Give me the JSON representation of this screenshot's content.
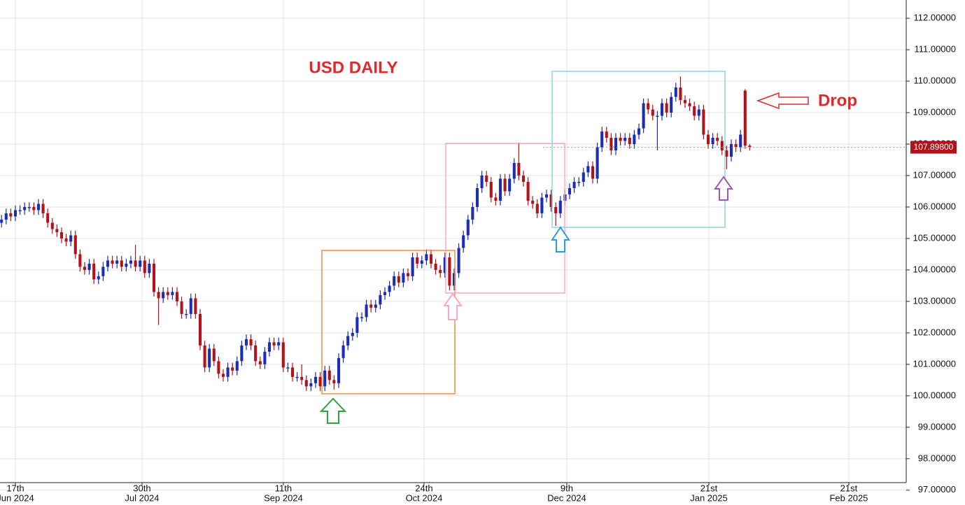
{
  "chart_data": {
    "type": "candlestick",
    "title": "USD DAILY",
    "annotation": "Drop",
    "up_color": "#1c2db5",
    "down_color": "#b2131b",
    "grid": true,
    "xlim": [
      -3.33,
      192.88
    ],
    "ylim": [
      97.24,
      112.58
    ],
    "xticks": [
      {
        "value": 0,
        "label": "17th",
        "sublabel": "Jun 2024"
      },
      {
        "value": 27.42,
        "label": "30th",
        "sublabel": "Jul 2024"
      },
      {
        "value": 58.03,
        "label": "11th",
        "sublabel": "Sep 2024"
      },
      {
        "value": 88.48,
        "label": "24th",
        "sublabel": "Oct 2024"
      },
      {
        "value": 119.39,
        "label": "9th",
        "sublabel": "Dec 2024"
      },
      {
        "value": 150.15,
        "label": "21st",
        "sublabel": "Jan 2025"
      },
      {
        "value": 180.45,
        "label": "21st",
        "sublabel": "Feb 2025"
      }
    ],
    "yticks": [
      {
        "value": 97,
        "label": "97.00000"
      },
      {
        "value": 98,
        "label": "98.00000"
      },
      {
        "value": 99,
        "label": "99.00000"
      },
      {
        "value": 100,
        "label": "100.00000"
      },
      {
        "value": 101,
        "label": "101.00000"
      },
      {
        "value": 102,
        "label": "102.00000"
      },
      {
        "value": 103,
        "label": "103.00000"
      },
      {
        "value": 104,
        "label": "104.00000"
      },
      {
        "value": 105,
        "label": "105.00000"
      },
      {
        "value": 106,
        "label": "106.00000"
      },
      {
        "value": 107,
        "label": "107.00000"
      },
      {
        "value": 108,
        "label": "108.00000"
      },
      {
        "value": 109,
        "label": "109.00000"
      },
      {
        "value": 110,
        "label": "110.00000"
      },
      {
        "value": 111,
        "label": "111.00000"
      },
      {
        "value": 112,
        "label": "112.00000"
      }
    ],
    "last_price": {
      "value": 107.898,
      "label": "107.89800"
    },
    "x": [
      -3,
      -2,
      -1,
      0,
      1,
      2,
      3,
      4,
      5,
      6,
      7,
      8,
      9,
      10,
      11,
      12,
      13,
      14,
      15,
      16,
      17,
      18,
      19,
      20,
      21,
      22,
      23,
      24,
      25,
      26,
      27,
      28,
      29,
      30,
      31,
      32,
      33,
      34,
      35,
      36,
      37,
      38,
      39,
      40,
      41,
      42,
      43,
      44,
      45,
      46,
      47,
      48,
      49,
      50,
      51,
      52,
      53,
      54,
      55,
      56,
      57,
      58,
      59,
      60,
      61,
      62,
      63,
      64,
      65,
      66,
      67,
      68,
      69,
      70,
      71,
      72,
      73,
      74,
      75,
      76,
      77,
      78,
      79,
      80,
      81,
      82,
      83,
      84,
      85,
      86,
      87,
      88,
      89,
      90,
      91,
      92,
      93,
      94,
      95,
      96,
      97,
      98,
      99,
      100,
      101,
      102,
      103,
      104,
      105,
      106,
      107,
      108,
      109,
      110,
      111,
      112,
      113,
      114,
      115,
      116,
      117,
      118,
      119,
      120,
      121,
      122,
      123,
      124,
      125,
      126,
      127,
      128,
      129,
      130,
      131,
      132,
      133,
      134,
      135,
      136,
      137,
      138,
      139,
      140,
      141,
      142,
      143,
      144,
      145,
      146,
      147,
      148,
      149,
      150,
      151,
      152,
      153,
      154,
      155,
      156,
      157,
      158,
      159
    ],
    "open": [
      105.5,
      105.6,
      105.8,
      105.7,
      105.9,
      105.9,
      106.0,
      106.0,
      105.9,
      106.1,
      105.8,
      105.5,
      105.3,
      105.2,
      105.0,
      104.9,
      105.1,
      104.5,
      104.1,
      104.0,
      104.2,
      103.7,
      103.8,
      104.1,
      104.3,
      104.2,
      104.3,
      104.1,
      104.2,
      104.3,
      104.1,
      104.3,
      103.9,
      104.2,
      103.3,
      103.1,
      103.3,
      103.2,
      103.3,
      103.0,
      102.6,
      102.6,
      103.1,
      102.6,
      101.6,
      100.9,
      101.5,
      101.1,
      100.7,
      100.6,
      100.9,
      100.8,
      101.1,
      101.6,
      101.8,
      101.6,
      101.1,
      101.0,
      101.4,
      101.7,
      101.6,
      101.7,
      100.9,
      100.9,
      100.6,
      100.6,
      100.5,
      100.3,
      100.4,
      100.6,
      100.3,
      100.8,
      100.5,
      100.4,
      101.2,
      101.6,
      101.9,
      102.0,
      102.5,
      102.5,
      102.9,
      102.8,
      102.9,
      103.2,
      103.3,
      103.5,
      103.8,
      103.6,
      103.9,
      103.8,
      104.4,
      104.2,
      104.3,
      104.5,
      104.2,
      104.0,
      103.9,
      104.4,
      103.5,
      103.9,
      104.7,
      105.1,
      105.6,
      106.0,
      106.6,
      107.0,
      106.8,
      106.3,
      106.2,
      106.9,
      106.5,
      106.9,
      107.4,
      107.0,
      106.8,
      106.2,
      106.1,
      105.8,
      106.3,
      106.4,
      106.0,
      105.8,
      106.2,
      106.4,
      106.6,
      106.8,
      106.8,
      107.1,
      107.3,
      106.9,
      107.9,
      108.4,
      108.2,
      107.8,
      108.2,
      108.1,
      108.2,
      108.0,
      108.3,
      108.5,
      109.3,
      109.1,
      108.9,
      108.9,
      109.3,
      109.0,
      109.5,
      109.8,
      109.4,
      109.3,
      109.2,
      108.9,
      109.1,
      108.3,
      108.0,
      108.2,
      108.1,
      107.8,
      107.6,
      108.0,
      107.9,
      109.7,
      107.95
    ],
    "high": [
      105.75,
      105.95,
      105.95,
      106.05,
      106.05,
      106.15,
      106.15,
      106.15,
      106.25,
      106.25,
      105.95,
      105.65,
      105.45,
      105.35,
      105.15,
      105.25,
      105.25,
      104.65,
      104.25,
      104.35,
      104.35,
      103.95,
      104.25,
      104.45,
      104.45,
      104.45,
      104.45,
      104.35,
      104.45,
      104.8,
      104.45,
      104.45,
      104.35,
      104.35,
      103.45,
      103.45,
      103.45,
      103.45,
      103.45,
      103.15,
      102.75,
      103.25,
      103.25,
      102.75,
      101.75,
      101.65,
      101.65,
      101.25,
      100.85,
      101.05,
      101.05,
      101.25,
      101.75,
      101.95,
      101.95,
      101.75,
      101.25,
      101.55,
      101.85,
      101.85,
      101.85,
      101.85,
      101.05,
      101.05,
      100.75,
      101.0,
      100.65,
      100.55,
      100.75,
      100.75,
      100.95,
      100.95,
      100.65,
      101.35,
      101.75,
      102.05,
      102.15,
      102.65,
      102.65,
      103.05,
      103.05,
      103.05,
      103.35,
      103.45,
      103.65,
      103.95,
      103.95,
      104.05,
      104.05,
      104.55,
      104.55,
      104.45,
      104.65,
      104.65,
      104.35,
      104.15,
      104.55,
      104.55,
      104.05,
      104.85,
      105.25,
      105.75,
      106.15,
      106.75,
      107.15,
      107.15,
      106.95,
      106.45,
      107.05,
      107.05,
      107.05,
      107.55,
      108.05,
      107.15,
      106.95,
      106.35,
      106.25,
      106.45,
      106.55,
      106.55,
      106.15,
      106.35,
      106.55,
      106.75,
      106.95,
      106.95,
      107.25,
      107.45,
      107.45,
      108.05,
      108.55,
      108.55,
      108.35,
      108.35,
      108.35,
      108.35,
      108.35,
      108.45,
      108.65,
      109.45,
      109.45,
      109.25,
      109.05,
      109.45,
      109.45,
      109.65,
      109.95,
      110.15,
      109.55,
      109.45,
      109.35,
      109.25,
      109.25,
      108.45,
      108.35,
      108.35,
      108.25,
      107.95,
      108.15,
      108.15,
      108.45,
      109.75,
      108.0
    ],
    "low": [
      105.35,
      105.45,
      105.55,
      105.55,
      105.75,
      105.75,
      105.85,
      105.75,
      105.75,
      105.65,
      105.35,
      105.15,
      105.05,
      104.85,
      104.75,
      104.75,
      104.35,
      103.95,
      103.85,
      103.85,
      103.55,
      103.55,
      103.65,
      103.95,
      104.05,
      104.05,
      103.95,
      103.95,
      104.05,
      103.95,
      103.95,
      103.75,
      103.75,
      103.15,
      102.25,
      102.95,
      103.05,
      103.05,
      102.85,
      102.45,
      102.45,
      102.45,
      102.45,
      101.45,
      100.75,
      100.75,
      100.95,
      100.55,
      100.45,
      100.45,
      100.65,
      100.65,
      100.95,
      101.45,
      101.45,
      100.95,
      100.85,
      100.85,
      101.25,
      101.45,
      101.45,
      100.75,
      100.75,
      100.45,
      100.45,
      100.35,
      100.15,
      100.15,
      100.25,
      100.15,
      100.15,
      100.35,
      100.2,
      100.25,
      101.05,
      101.45,
      101.75,
      101.85,
      102.35,
      102.35,
      102.65,
      102.65,
      102.75,
      103.05,
      103.15,
      103.35,
      103.45,
      103.45,
      103.65,
      103.65,
      104.05,
      104.05,
      104.15,
      104.05,
      103.85,
      103.75,
      103.75,
      103.35,
      103.35,
      103.75,
      104.55,
      104.95,
      105.45,
      105.85,
      106.45,
      106.65,
      106.15,
      106.05,
      106.05,
      106.35,
      106.35,
      106.75,
      106.85,
      106.65,
      106.05,
      105.95,
      105.65,
      105.65,
      106.15,
      105.85,
      105.4,
      105.65,
      106.05,
      106.25,
      106.45,
      106.65,
      106.65,
      106.95,
      106.75,
      106.75,
      107.75,
      108.05,
      107.65,
      107.65,
      107.95,
      107.95,
      107.85,
      107.85,
      108.15,
      108.35,
      108.95,
      108.75,
      107.8,
      108.75,
      108.85,
      108.85,
      109.35,
      109.25,
      109.15,
      109.05,
      108.75,
      108.75,
      108.15,
      107.85,
      107.85,
      107.95,
      107.65,
      107.2,
      107.45,
      107.75,
      107.75,
      107.85,
      107.8
    ],
    "close": [
      105.6,
      105.8,
      105.7,
      105.9,
      105.9,
      106.0,
      106.0,
      105.9,
      106.1,
      105.8,
      105.5,
      105.3,
      105.2,
      105.0,
      104.9,
      105.1,
      104.5,
      104.1,
      104.0,
      104.2,
      103.7,
      103.8,
      104.1,
      104.3,
      104.2,
      104.3,
      104.1,
      104.2,
      104.3,
      104.1,
      104.3,
      103.9,
      104.2,
      103.3,
      103.1,
      103.3,
      103.2,
      103.3,
      103.0,
      102.6,
      102.6,
      103.1,
      102.6,
      101.6,
      100.9,
      101.5,
      101.1,
      100.7,
      100.6,
      100.9,
      100.8,
      101.1,
      101.6,
      101.8,
      101.6,
      101.1,
      101.0,
      101.4,
      101.7,
      101.6,
      101.7,
      100.9,
      100.9,
      100.6,
      100.6,
      100.5,
      100.3,
      100.4,
      100.6,
      100.3,
      100.8,
      100.5,
      100.4,
      101.2,
      101.6,
      101.9,
      102.0,
      102.5,
      102.5,
      102.9,
      102.8,
      102.9,
      103.2,
      103.3,
      103.5,
      103.8,
      103.6,
      103.9,
      103.8,
      104.4,
      104.2,
      104.3,
      104.5,
      104.2,
      104.0,
      103.9,
      104.4,
      103.5,
      103.9,
      104.7,
      105.1,
      105.6,
      106.0,
      106.6,
      107.0,
      106.8,
      106.3,
      106.2,
      106.9,
      106.5,
      106.9,
      107.4,
      107.0,
      106.8,
      106.2,
      106.1,
      105.8,
      106.3,
      106.4,
      106.0,
      105.8,
      106.2,
      106.4,
      106.6,
      106.8,
      106.8,
      107.1,
      107.3,
      106.9,
      107.9,
      108.4,
      108.2,
      107.8,
      108.2,
      108.1,
      108.2,
      108.0,
      108.3,
      108.5,
      109.3,
      109.1,
      108.9,
      108.9,
      109.3,
      109.0,
      109.5,
      109.8,
      109.4,
      109.3,
      109.2,
      108.9,
      109.1,
      108.3,
      108.0,
      108.2,
      108.1,
      107.8,
      107.6,
      108.0,
      107.9,
      108.3,
      107.95,
      107.9
    ]
  }
}
